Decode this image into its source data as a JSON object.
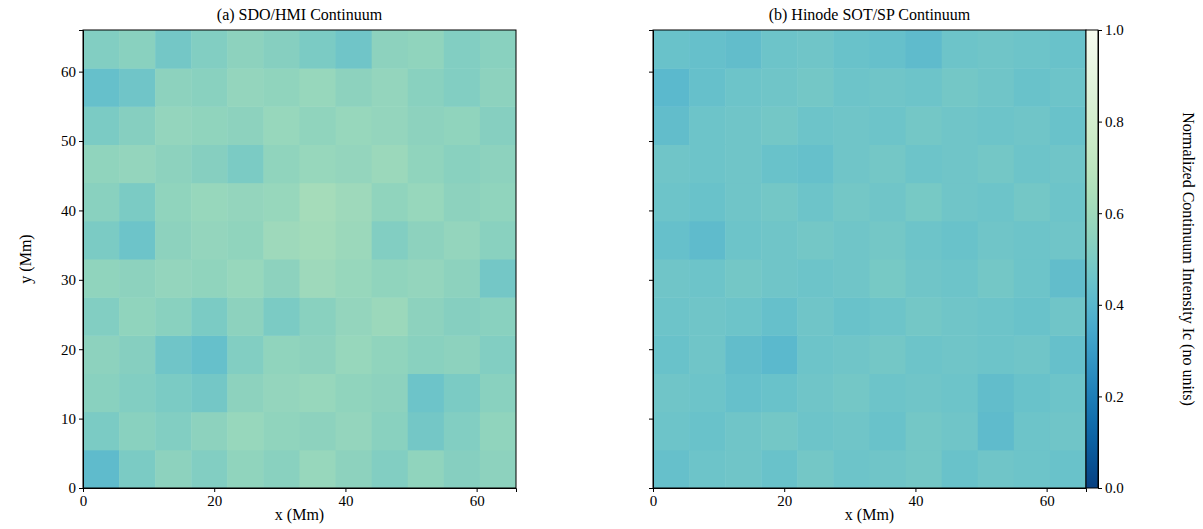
{
  "chart_data": [
    {
      "type": "heatmap",
      "title": "(a) SDO/HMI Continuum",
      "xlabel": "x (Mm)",
      "ylabel": "y (Mm)",
      "xlim": [
        0,
        66
      ],
      "ylim": [
        0,
        66
      ],
      "xticks": [
        0,
        20,
        40,
        60
      ],
      "yticks": [
        0,
        10,
        20,
        30,
        40,
        50,
        60
      ],
      "x": [
        2.75,
        8.25,
        13.75,
        19.25,
        24.75,
        30.25,
        35.75,
        41.25,
        46.75,
        52.25,
        57.75,
        63.25
      ],
      "y": [
        2.75,
        8.25,
        13.75,
        19.25,
        24.75,
        30.25,
        35.75,
        41.25,
        46.75,
        52.25,
        57.75,
        63.25
      ],
      "z": [
        [
          0.42,
          0.5,
          0.55,
          0.52,
          0.56,
          0.54,
          0.58,
          0.55,
          0.52,
          0.56,
          0.53,
          0.55
        ],
        [
          0.5,
          0.54,
          0.52,
          0.55,
          0.58,
          0.56,
          0.55,
          0.57,
          0.54,
          0.48,
          0.52,
          0.56
        ],
        [
          0.54,
          0.52,
          0.5,
          0.48,
          0.55,
          0.57,
          0.58,
          0.56,
          0.55,
          0.46,
          0.5,
          0.54
        ],
        [
          0.55,
          0.53,
          0.47,
          0.44,
          0.52,
          0.56,
          0.55,
          0.58,
          0.56,
          0.54,
          0.55,
          0.52
        ],
        [
          0.52,
          0.56,
          0.54,
          0.5,
          0.55,
          0.5,
          0.54,
          0.57,
          0.59,
          0.55,
          0.53,
          0.54
        ],
        [
          0.56,
          0.55,
          0.57,
          0.56,
          0.58,
          0.55,
          0.6,
          0.58,
          0.56,
          0.57,
          0.55,
          0.48
        ],
        [
          0.5,
          0.46,
          0.55,
          0.57,
          0.56,
          0.6,
          0.61,
          0.59,
          0.52,
          0.55,
          0.57,
          0.54
        ],
        [
          0.54,
          0.5,
          0.56,
          0.58,
          0.57,
          0.58,
          0.62,
          0.6,
          0.56,
          0.58,
          0.55,
          0.56
        ],
        [
          0.56,
          0.57,
          0.55,
          0.53,
          0.5,
          0.56,
          0.58,
          0.57,
          0.59,
          0.56,
          0.54,
          0.55
        ],
        [
          0.5,
          0.53,
          0.57,
          0.56,
          0.55,
          0.58,
          0.56,
          0.58,
          0.57,
          0.55,
          0.56,
          0.53
        ],
        [
          0.44,
          0.47,
          0.55,
          0.54,
          0.57,
          0.56,
          0.58,
          0.55,
          0.57,
          0.54,
          0.52,
          0.55
        ],
        [
          0.52,
          0.54,
          0.48,
          0.52,
          0.55,
          0.53,
          0.5,
          0.47,
          0.55,
          0.56,
          0.52,
          0.54
        ]
      ]
    },
    {
      "type": "heatmap",
      "title": "(b) Hinode SOT/SP Continuum",
      "xlabel": "x (Mm)",
      "xlim": [
        0,
        66
      ],
      "ylim": [
        0,
        66
      ],
      "xticks": [
        0,
        20,
        40,
        60
      ],
      "yticks": [
        0,
        10,
        20,
        30,
        40,
        50,
        60
      ],
      "tick_labels": "x",
      "x": [
        2.75,
        8.25,
        13.75,
        19.25,
        24.75,
        30.25,
        35.75,
        41.25,
        46.75,
        52.25,
        57.75,
        63.25
      ],
      "y": [
        2.75,
        8.25,
        13.75,
        19.25,
        24.75,
        30.25,
        35.75,
        41.25,
        46.75,
        52.25,
        57.75,
        63.25
      ],
      "z": [
        [
          0.44,
          0.46,
          0.47,
          0.45,
          0.48,
          0.46,
          0.47,
          0.48,
          0.45,
          0.47,
          0.46,
          0.45
        ],
        [
          0.46,
          0.45,
          0.47,
          0.48,
          0.46,
          0.47,
          0.45,
          0.48,
          0.47,
          0.42,
          0.46,
          0.47
        ],
        [
          0.47,
          0.46,
          0.44,
          0.45,
          0.47,
          0.48,
          0.46,
          0.47,
          0.46,
          0.43,
          0.45,
          0.46
        ],
        [
          0.45,
          0.47,
          0.43,
          0.41,
          0.46,
          0.47,
          0.48,
          0.46,
          0.47,
          0.46,
          0.47,
          0.44
        ],
        [
          0.46,
          0.47,
          0.46,
          0.44,
          0.47,
          0.45,
          0.46,
          0.48,
          0.47,
          0.46,
          0.45,
          0.47
        ],
        [
          0.47,
          0.46,
          0.48,
          0.47,
          0.46,
          0.47,
          0.49,
          0.47,
          0.46,
          0.48,
          0.46,
          0.43
        ],
        [
          0.44,
          0.42,
          0.46,
          0.47,
          0.48,
          0.47,
          0.48,
          0.46,
          0.45,
          0.47,
          0.46,
          0.47
        ],
        [
          0.46,
          0.45,
          0.47,
          0.48,
          0.46,
          0.48,
          0.47,
          0.49,
          0.47,
          0.46,
          0.48,
          0.46
        ],
        [
          0.47,
          0.46,
          0.47,
          0.45,
          0.44,
          0.47,
          0.48,
          0.46,
          0.47,
          0.48,
          0.46,
          0.47
        ],
        [
          0.43,
          0.46,
          0.47,
          0.48,
          0.46,
          0.47,
          0.46,
          0.48,
          0.47,
          0.46,
          0.47,
          0.45
        ],
        [
          0.41,
          0.44,
          0.46,
          0.47,
          0.48,
          0.46,
          0.47,
          0.46,
          0.48,
          0.47,
          0.45,
          0.46
        ],
        [
          0.45,
          0.44,
          0.43,
          0.46,
          0.47,
          0.45,
          0.44,
          0.42,
          0.46,
          0.47,
          0.46,
          0.45
        ]
      ],
      "colorbar": {
        "label": "Normalized Continuum Intensity Ic (no units)",
        "range": [
          0,
          1
        ],
        "ticks": [
          {
            "value": 0,
            "label": "0.0"
          },
          0.2,
          0.4,
          0.6,
          0.8,
          {
            "value": 1,
            "label": "1.0"
          }
        ]
      }
    }
  ]
}
